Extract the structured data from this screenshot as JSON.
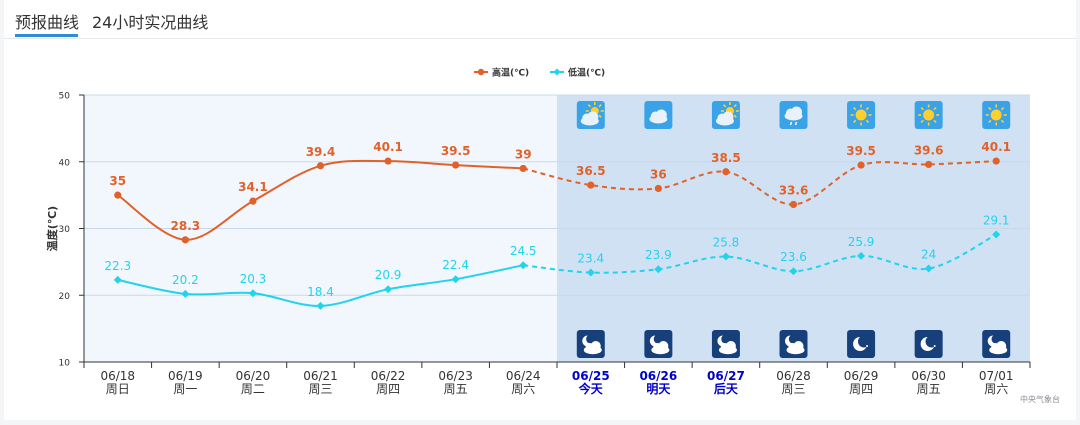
{
  "tabs": [
    {
      "label": "预报曲线",
      "active": true
    },
    {
      "label": "24小时实况曲线",
      "active": false
    }
  ],
  "credit": "中央气象台",
  "chart_data": {
    "type": "line",
    "ylabel": "温度(℃)",
    "ylim": [
      10,
      50
    ],
    "yticks": [
      10,
      20,
      30,
      40,
      50
    ],
    "grid": true,
    "legend_position": "top-center",
    "forecast_start_index": 6,
    "categories": [
      "06/18",
      "06/19",
      "06/20",
      "06/21",
      "06/22",
      "06/23",
      "06/24",
      "06/25",
      "06/26",
      "06/27",
      "06/28",
      "06/29",
      "06/30",
      "07/01"
    ],
    "day_labels": [
      "周日",
      "周一",
      "周二",
      "周三",
      "周四",
      "周五",
      "周六",
      "今天",
      "明天",
      "后天",
      "周三",
      "周四",
      "周五",
      "周六"
    ],
    "highlight_days": [
      7,
      8,
      9
    ],
    "highlight_color": "#0000cc",
    "series": [
      {
        "name": "高温(℃)",
        "color": "#e0622a",
        "values": [
          35,
          28.3,
          34.1,
          39.4,
          40.1,
          39.5,
          39,
          36.5,
          36,
          38.5,
          33.6,
          39.5,
          39.6,
          40.1
        ]
      },
      {
        "name": "低温(℃)",
        "color": "#22d3ec",
        "values": [
          22.3,
          20.2,
          20.3,
          18.4,
          20.9,
          22.4,
          24.5,
          23.4,
          23.9,
          25.8,
          23.6,
          25.9,
          24,
          29.1
        ]
      }
    ],
    "day_weather_icons": [
      "partly-cloudy-icon",
      "cloudy-icon",
      "partly-cloudy-icon",
      "shower-icon",
      "sunny-icon",
      "sunny-icon",
      "sunny-icon"
    ],
    "night_weather_icons": [
      "cloudy-night-icon",
      "cloudy-night-icon",
      "cloudy-night-icon",
      "cloudy-night-icon",
      "clear-night-icon",
      "clear-night-icon",
      "cloudy-night-icon"
    ]
  }
}
